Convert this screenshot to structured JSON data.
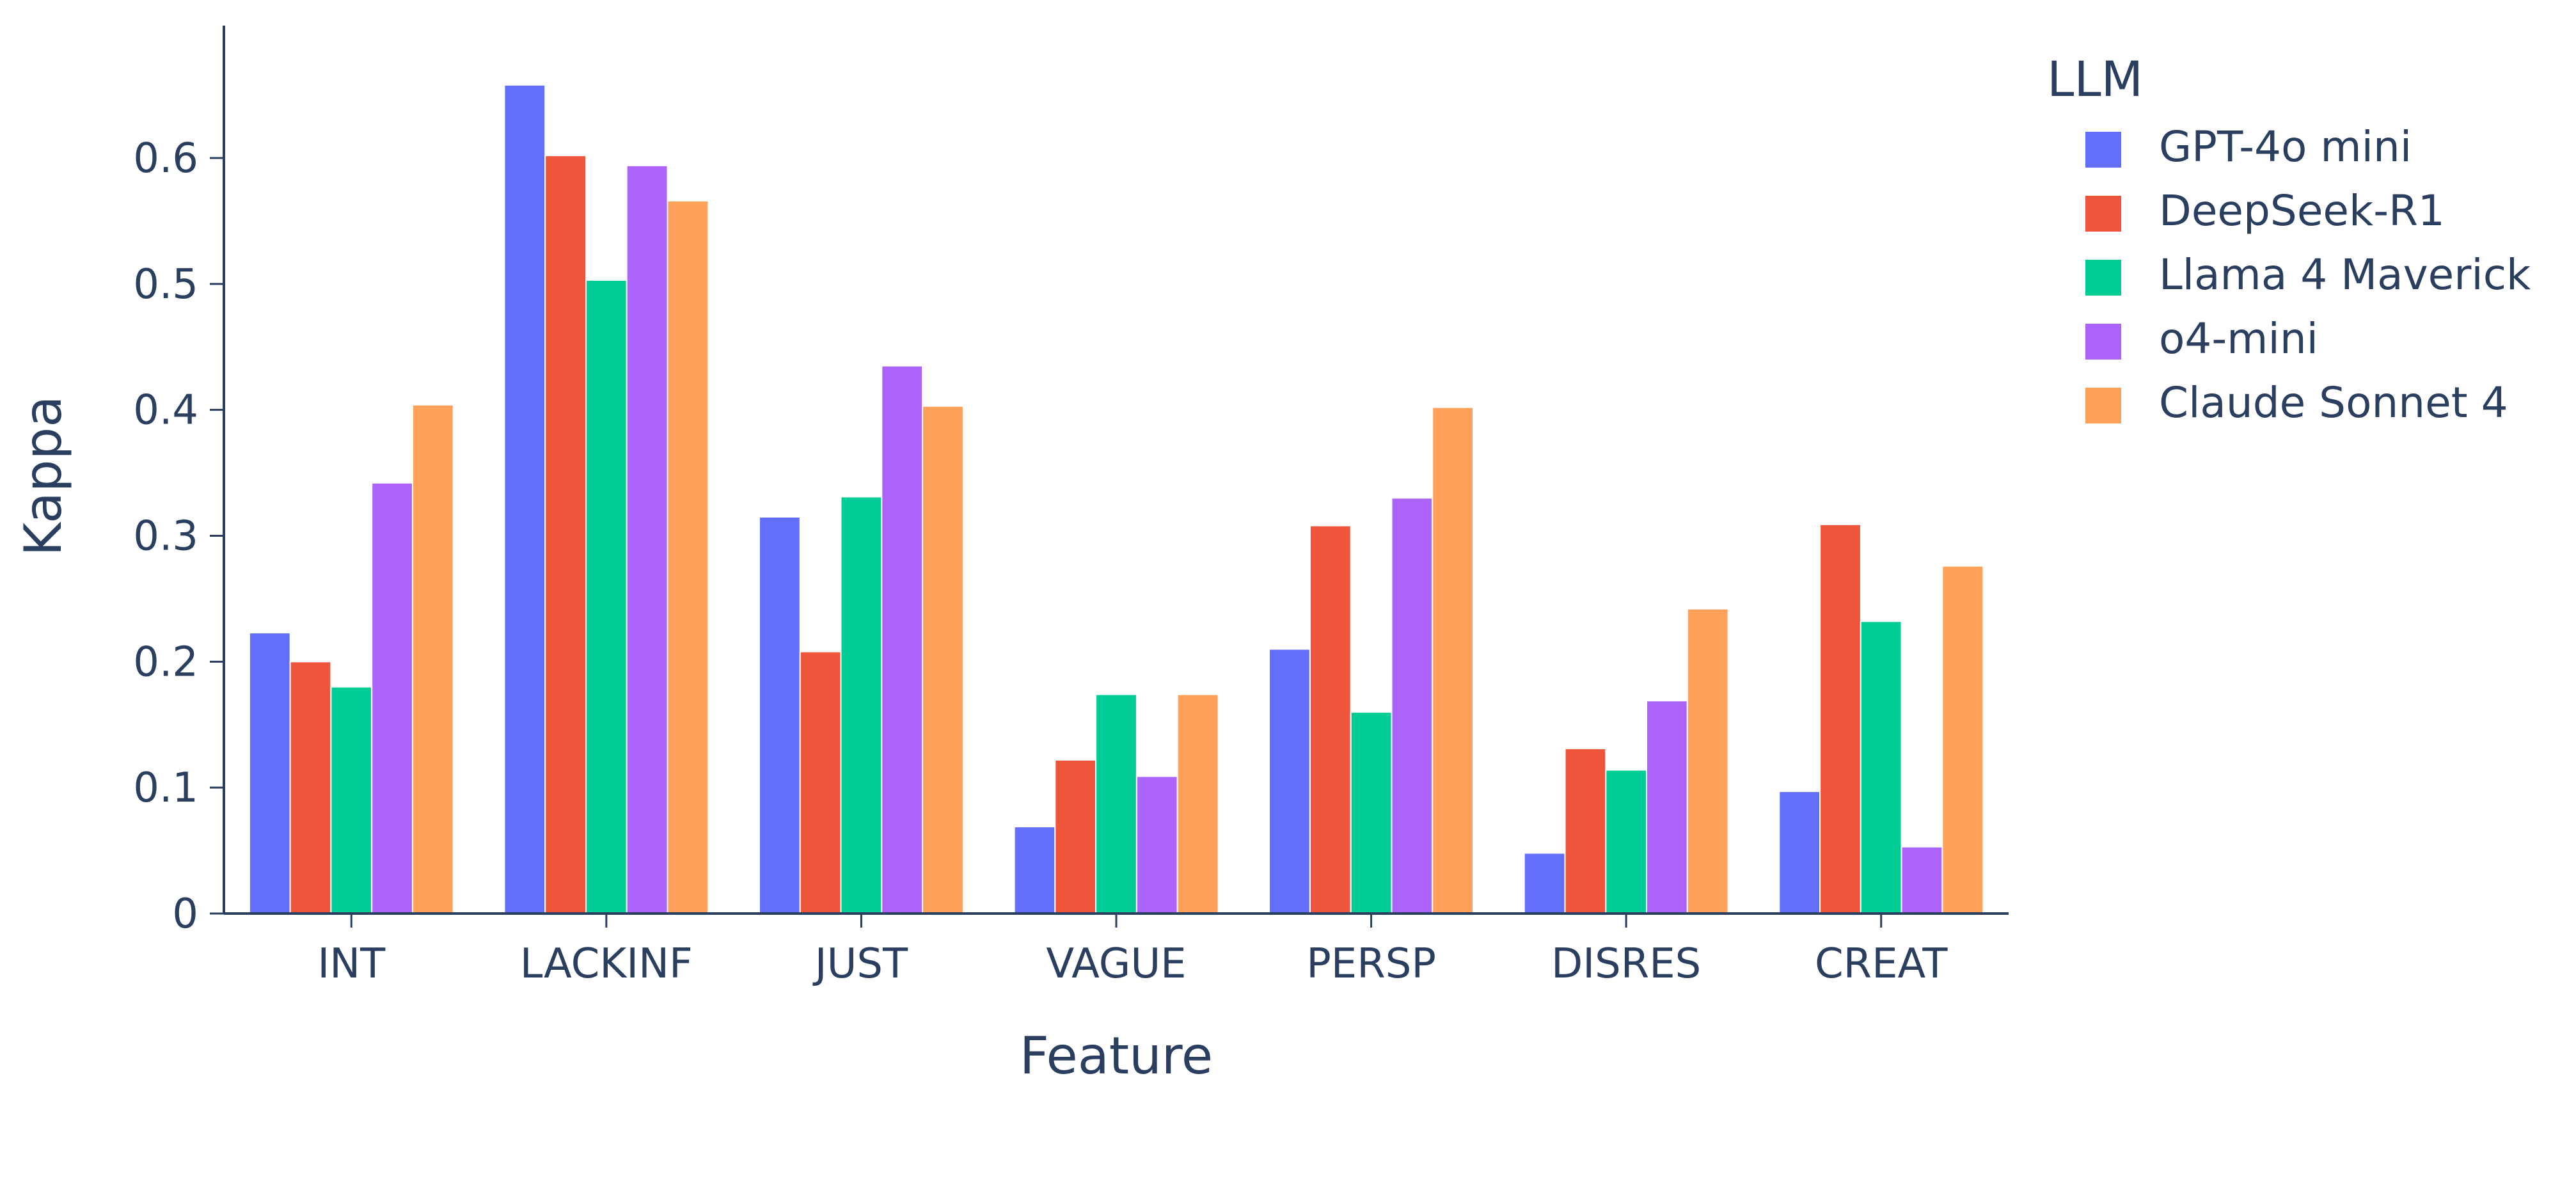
{
  "chart_data": {
    "type": "bar",
    "xlabel": "Feature",
    "ylabel": "Kappa",
    "categories": [
      "INT",
      "LACKINF",
      "JUST",
      "VAGUE",
      "PERSP",
      "DISRES",
      "CREAT"
    ],
    "ylim": [
      0,
      0.695
    ],
    "yticks": [
      0,
      0.1,
      0.2,
      0.3,
      0.4,
      0.5,
      0.6
    ],
    "ytick_labels": [
      "0",
      "0.1",
      "0.2",
      "0.3",
      "0.4",
      "0.5",
      "0.6"
    ],
    "grid": false,
    "legend": {
      "title": "LLM",
      "placement": "right"
    },
    "series": [
      {
        "name": "GPT-4o mini",
        "color": "#636efa",
        "values": [
          0.223,
          0.658,
          0.315,
          0.069,
          0.21,
          0.048,
          0.097
        ]
      },
      {
        "name": "DeepSeek-R1",
        "color": "#ef553b",
        "values": [
          0.2,
          0.602,
          0.208,
          0.122,
          0.308,
          0.131,
          0.309
        ]
      },
      {
        "name": "Llama 4 Maverick",
        "color": "#00cc96",
        "values": [
          0.18,
          0.503,
          0.331,
          0.174,
          0.16,
          0.114,
          0.232
        ]
      },
      {
        "name": "o4-mini",
        "color": "#ab63fa",
        "values": [
          0.342,
          0.594,
          0.435,
          0.109,
          0.33,
          0.169,
          0.053
        ]
      },
      {
        "name": "Claude Sonnet 4",
        "color": "#ffa15a",
        "values": [
          0.404,
          0.566,
          0.403,
          0.174,
          0.402,
          0.242,
          0.276
        ]
      }
    ]
  }
}
